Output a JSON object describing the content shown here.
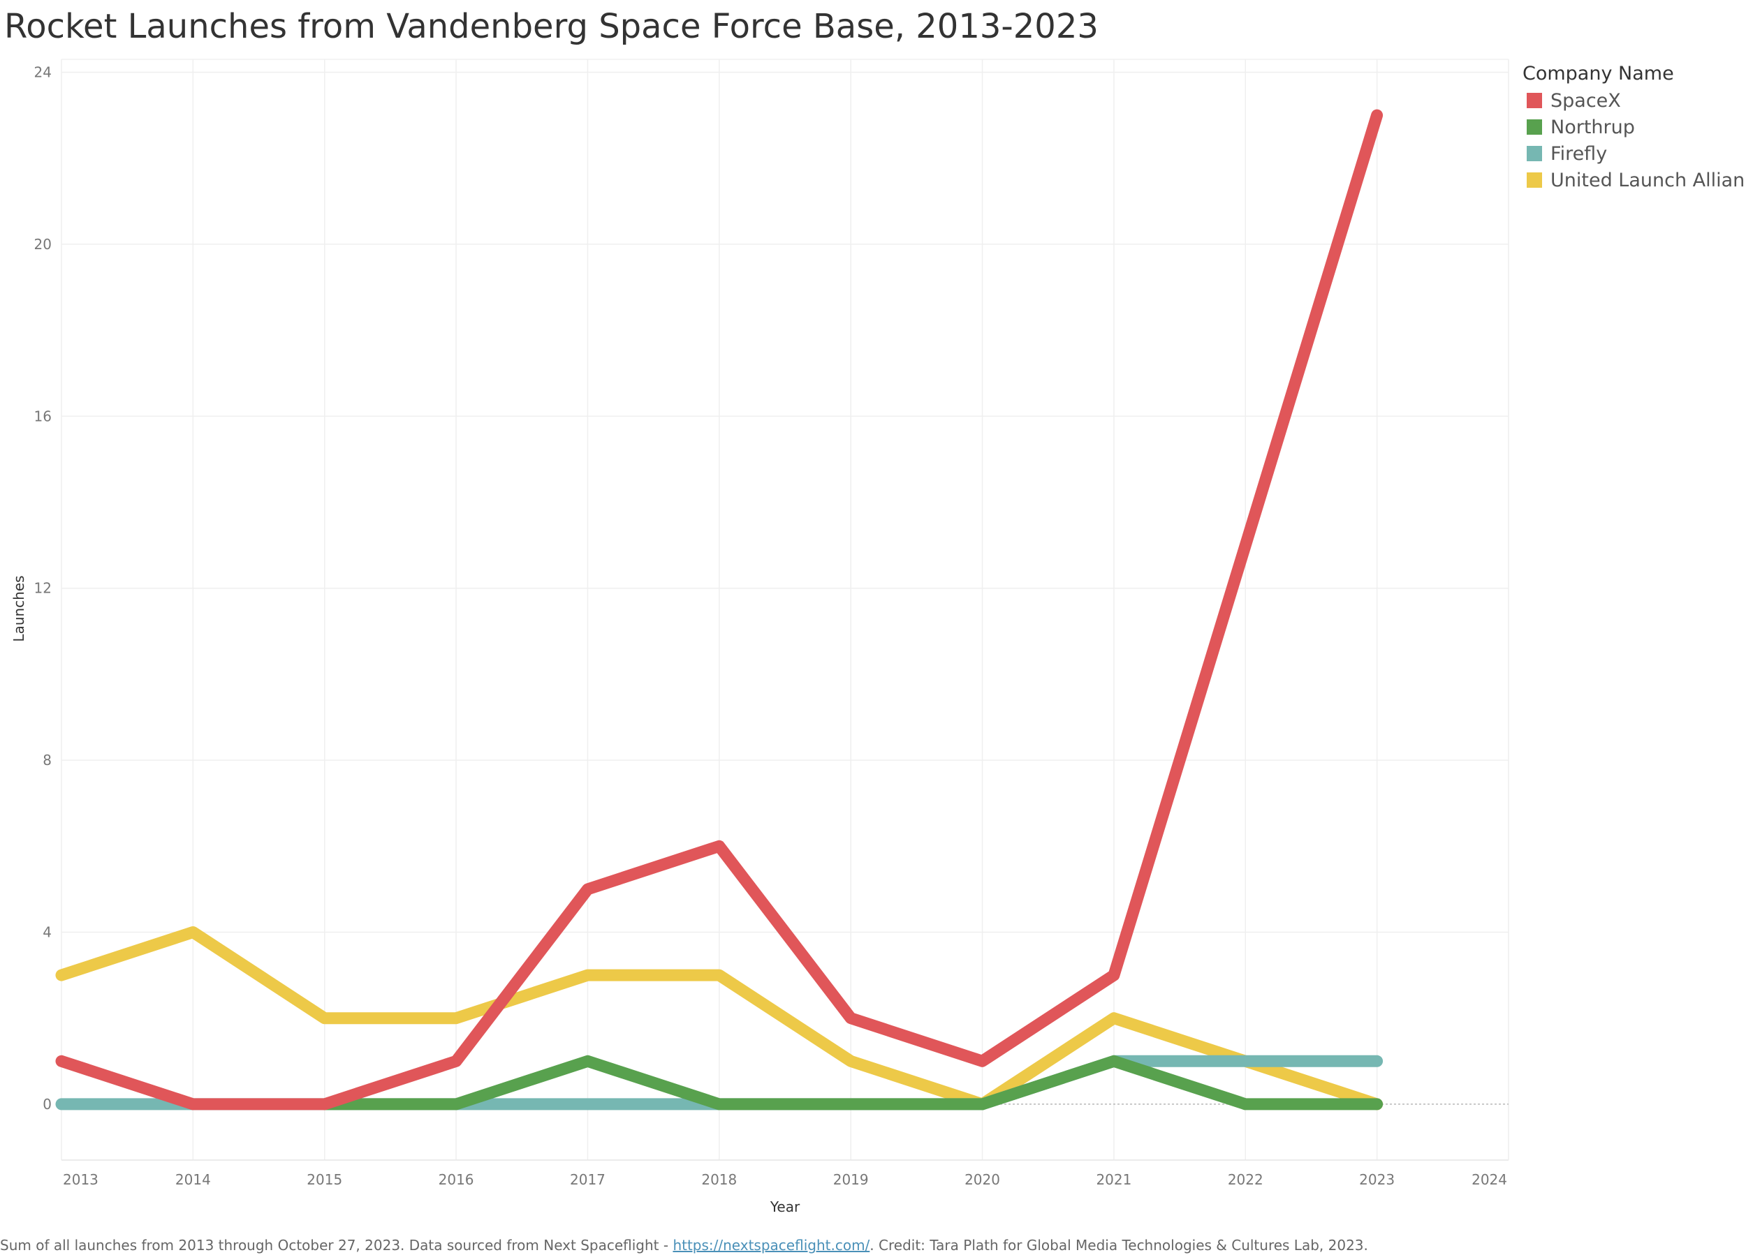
{
  "title": "Rocket Launches from Vandenberg Space Force Base, 2013-2023",
  "legend": {
    "title": "Company Name",
    "items": [
      {
        "label": "SpaceX",
        "color": "#e05659"
      },
      {
        "label": "Northrup",
        "color": "#58a14e"
      },
      {
        "label": "Firefly",
        "color": "#76b7b2"
      },
      {
        "label": "United Launch Alliance",
        "color": "#edc948"
      }
    ]
  },
  "footer": {
    "text_before": "Sum of all launches from 2013 through October 27, 2023. Data sourced from Next Spaceflight - ",
    "link_text": "https://nextspaceflight.com/",
    "text_after": ". Credit: Tara Plath for Global Media Technologies & Cultures Lab, 2023."
  },
  "chart_data": {
    "type": "line",
    "title": "Rocket Launches from Vandenberg Space Force Base, 2013-2023",
    "xlabel": "Year",
    "ylabel": "Launches",
    "xlim": [
      2013,
      2024
    ],
    "ylim": [
      -1.3,
      24.3
    ],
    "x_ticks": [
      2013,
      2014,
      2015,
      2016,
      2017,
      2018,
      2019,
      2020,
      2021,
      2022,
      2023,
      2024
    ],
    "y_ticks": [
      0,
      4,
      8,
      12,
      16,
      20,
      24
    ],
    "grid": true,
    "legend_position": "top-right",
    "x": [
      2013,
      2014,
      2015,
      2016,
      2017,
      2018,
      2019,
      2020,
      2021,
      2022,
      2023
    ],
    "series": [
      {
        "name": "United Launch Alliance",
        "color": "#edc948",
        "values": [
          3,
          4,
          2,
          2,
          3,
          3,
          1,
          0,
          2,
          1,
          0
        ]
      },
      {
        "name": "Firefly",
        "color": "#76b7b2",
        "values": [
          0,
          0,
          0,
          0,
          0,
          0,
          0,
          0,
          1,
          1,
          1
        ]
      },
      {
        "name": "Northrup",
        "color": "#58a14e",
        "values": [
          null,
          null,
          0,
          0,
          1,
          0,
          0,
          0,
          1,
          0,
          0
        ]
      },
      {
        "name": "SpaceX",
        "color": "#e05659",
        "values": [
          1,
          0,
          0,
          1,
          5,
          6,
          2,
          1,
          3,
          13,
          23
        ]
      }
    ]
  }
}
